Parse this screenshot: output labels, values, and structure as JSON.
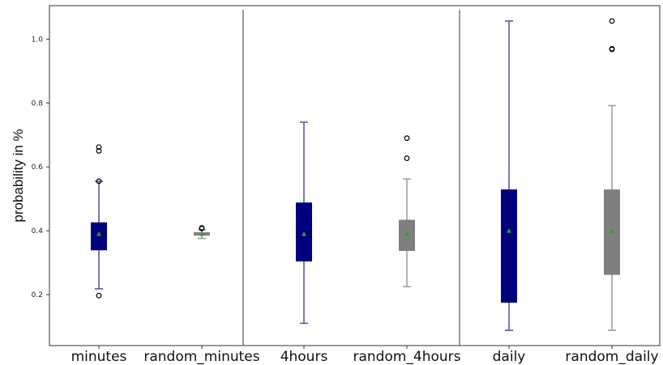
{
  "chart_data": {
    "type": "box",
    "title": "",
    "xlabel": "",
    "ylabel": "probability in %",
    "ylim": [
      0.08,
      1.08
    ],
    "yticks": [
      "0.2",
      "0.4",
      "0.6",
      "0.8",
      "1.0"
    ],
    "ytick_values": [
      0.2,
      0.4,
      0.6,
      0.8,
      1.0
    ],
    "grid": false,
    "legend": "none",
    "groups_separated_by_vertical_lines": true,
    "colors": {
      "observed_box": "#00007f",
      "observed_whisker": "#5a5aa8",
      "random_box": "#7f7f7f",
      "random_whisker": "#a0a0a0",
      "mean_marker": "#2ca02c",
      "outlier": "#000000",
      "separator": "#333333"
    },
    "series": [
      {
        "category": "minutes",
        "color_role": "observed",
        "whisker_low": 0.218,
        "q1": 0.34,
        "q3": 0.425,
        "whisker_high": 0.555,
        "mean": 0.39,
        "outliers": [
          0.197,
          0.555,
          0.65,
          0.662
        ]
      },
      {
        "category": "random_minutes",
        "color_role": "random",
        "whisker_low": 0.376,
        "q1": 0.386,
        "q3": 0.394,
        "whisker_high": 0.403,
        "mean": 0.39,
        "outliers": [
          0.407,
          0.409
        ]
      },
      {
        "category": "4hours",
        "color_role": "observed",
        "whisker_low": 0.11,
        "q1": 0.305,
        "q3": 0.487,
        "whisker_high": 0.74,
        "mean": 0.39,
        "outliers": []
      },
      {
        "category": "random_4hours",
        "color_role": "random",
        "whisker_low": 0.225,
        "q1": 0.338,
        "q3": 0.433,
        "whisker_high": 0.562,
        "mean": 0.39,
        "outliers": [
          0.627,
          0.69
        ]
      },
      {
        "category": "daily",
        "color_role": "observed",
        "whisker_low": 0.088,
        "q1": 0.176,
        "q3": 0.528,
        "whisker_high": 1.057,
        "mean": 0.4,
        "outliers": []
      },
      {
        "category": "random_daily",
        "color_role": "random",
        "whisker_low": 0.088,
        "q1": 0.263,
        "q3": 0.528,
        "whisker_high": 0.792,
        "mean": 0.4,
        "outliers": [
          0.968,
          0.97,
          1.057
        ]
      }
    ]
  }
}
